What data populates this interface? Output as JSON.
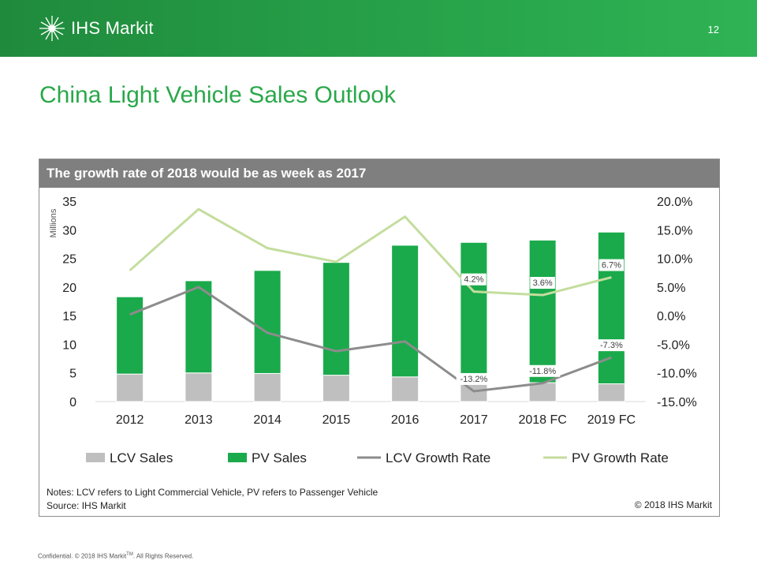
{
  "header": {
    "brand": "IHS Markit",
    "page_number": "12"
  },
  "title": "China Light Vehicle Sales Outlook",
  "panel_title": "The growth rate of 2018 would be as week as 2017",
  "notes": "Notes: LCV refers to Light Commercial Vehicle, PV refers to Passenger Vehicle",
  "source": "Source: IHS Markit",
  "copyright": "© 2018 IHS Markit",
  "footer": {
    "text_before": "Confidential. © 2018 IHS Markit",
    "tm": "TM",
    "text_after": ". All Rights Reserved."
  },
  "colors": {
    "header_green": "#27a24a",
    "title_green": "#2aa84a",
    "lcv_sales": "#bfbfbf",
    "pv_sales": "#1aaa4b",
    "lcv_growth": "#8c8c8c",
    "pv_growth": "#c4dd9e",
    "panel_head": "#7f7f7f"
  },
  "chart_data": {
    "type": "bar",
    "stacked": true,
    "categories": [
      "2012",
      "2013",
      "2014",
      "2015",
      "2016",
      "2017",
      "2018 FC",
      "2019 FC"
    ],
    "ylabel": "Millions",
    "ylim": [
      0,
      35
    ],
    "y_ticks": [
      "0",
      "5",
      "10",
      "15",
      "20",
      "25",
      "30",
      "35"
    ],
    "y2lim": [
      -15,
      20
    ],
    "y2_ticks": [
      "-15.0%",
      "-10.0%",
      "-5.0%",
      "0.0%",
      "5.0%",
      "10.0%",
      "15.0%",
      "20.0%"
    ],
    "series": [
      {
        "name": "LCV Sales",
        "type": "bar",
        "axis": "left",
        "values": [
          4.8,
          5.0,
          4.9,
          4.6,
          4.3,
          3.7,
          3.3,
          3.1
        ]
      },
      {
        "name": "PV Sales",
        "type": "bar",
        "axis": "left",
        "values": [
          13.5,
          16.1,
          18.0,
          19.7,
          23.0,
          24.1,
          24.9,
          26.5
        ]
      },
      {
        "name": "LCV Growth Rate",
        "type": "line",
        "axis": "right",
        "values": [
          0.2,
          5.0,
          -3.0,
          -6.2,
          -4.5,
          -13.2,
          -11.8,
          -7.3
        ]
      },
      {
        "name": "PV Growth Rate",
        "type": "line",
        "axis": "right",
        "values": [
          7.9,
          18.6,
          11.8,
          9.4,
          17.3,
          4.2,
          3.6,
          6.7
        ]
      }
    ],
    "data_labels": [
      {
        "series": "PV Growth Rate",
        "index": 5,
        "text": "4.2%"
      },
      {
        "series": "PV Growth Rate",
        "index": 6,
        "text": "3.6%"
      },
      {
        "series": "PV Growth Rate",
        "index": 7,
        "text": "6.7%"
      },
      {
        "series": "LCV Growth Rate",
        "index": 5,
        "text": "-13.2%"
      },
      {
        "series": "LCV Growth Rate",
        "index": 6,
        "text": "-11.8%"
      },
      {
        "series": "LCV Growth Rate",
        "index": 7,
        "text": "-7.3%"
      }
    ],
    "legend": "bottom",
    "grid": false
  }
}
